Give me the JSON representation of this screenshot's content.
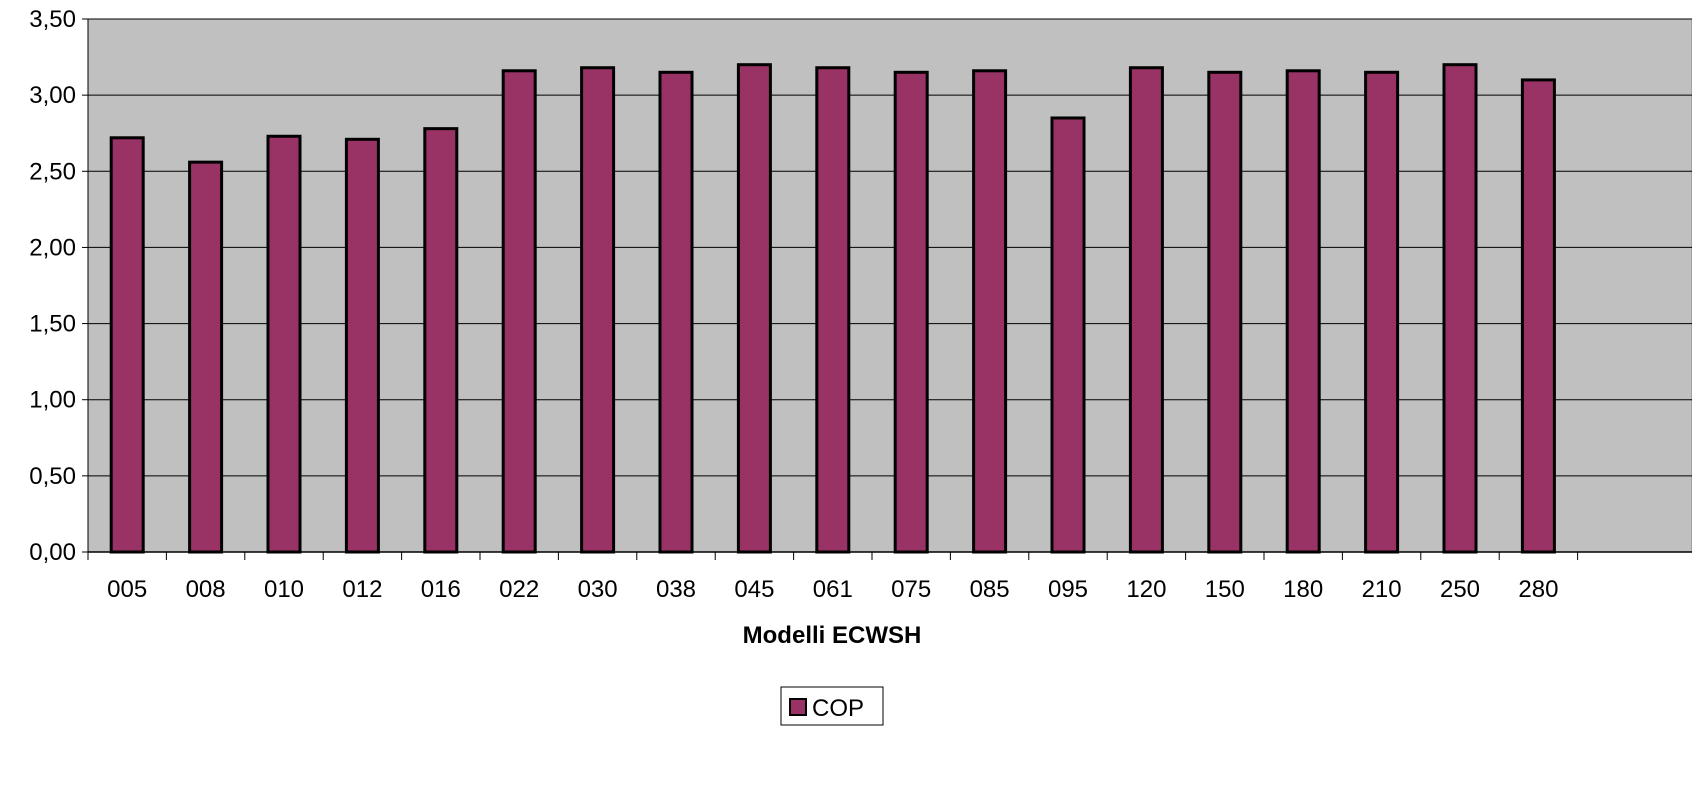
{
  "chart_data": {
    "type": "bar",
    "title": "",
    "xlabel": "Modelli ECWSH",
    "ylabel": "",
    "categories": [
      "005",
      "008",
      "010",
      "012",
      "016",
      "022",
      "030",
      "038",
      "045",
      "061",
      "075",
      "085",
      "095",
      "120",
      "150",
      "180",
      "210",
      "250",
      "280"
    ],
    "series": [
      {
        "name": "COP",
        "values": [
          2.72,
          2.56,
          2.73,
          2.71,
          2.78,
          3.16,
          3.18,
          3.15,
          3.2,
          3.18,
          3.15,
          3.16,
          2.85,
          3.18,
          3.15,
          3.16,
          3.15,
          3.2,
          3.1
        ]
      }
    ],
    "ylim": [
      0,
      3.5
    ],
    "yticks": [
      "0,00",
      "0,50",
      "1,00",
      "1,50",
      "2,00",
      "2,50",
      "3,00",
      "3,50"
    ],
    "grid": true,
    "legend_position": "bottom-center",
    "colors": {
      "bar_fill": "#993366",
      "bar_stroke": "#000000",
      "plot_background": "#c0c0c0",
      "gridline": "#000000"
    }
  }
}
